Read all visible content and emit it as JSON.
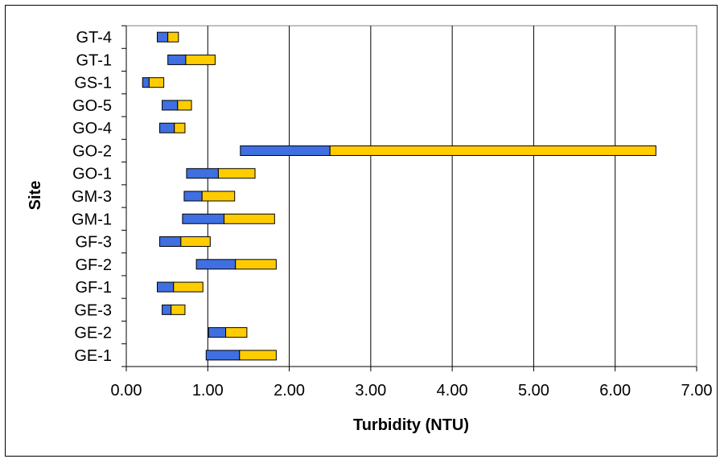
{
  "chart_data": {
    "type": "bar",
    "orientation": "horizontal",
    "stacked": "floating",
    "title": "",
    "xlabel": "Turbidity (NTU)",
    "ylabel": "Site",
    "xlim": [
      0,
      7
    ],
    "x_ticks": [
      "0.00",
      "1.00",
      "2.00",
      "3.00",
      "4.00",
      "5.00",
      "6.00",
      "7.00"
    ],
    "grid": "vertical",
    "legend": "none",
    "categories": [
      "GT-4",
      "GT-1",
      "GS-1",
      "GO-5",
      "GO-4",
      "GO-2",
      "GO-1",
      "GM-3",
      "GM-1",
      "GF-3",
      "GF-2",
      "GF-1",
      "GE-3",
      "GE-2",
      "GE-1"
    ],
    "series": [
      {
        "color": "#3f6fe0",
        "start": [
          0.38,
          0.51,
          0.2,
          0.44,
          0.41,
          1.4,
          0.74,
          0.71,
          0.69,
          0.41,
          0.86,
          0.38,
          0.44,
          1.01,
          0.98
        ],
        "end": [
          0.51,
          0.73,
          0.28,
          0.63,
          0.59,
          2.5,
          1.13,
          0.93,
          1.2,
          0.67,
          1.34,
          0.58,
          0.55,
          1.22,
          1.39
        ]
      },
      {
        "color": "#ffcc00",
        "start": [
          0.51,
          0.73,
          0.28,
          0.63,
          0.59,
          2.5,
          1.13,
          0.93,
          1.2,
          0.67,
          1.34,
          0.58,
          0.55,
          1.22,
          1.39
        ],
        "end": [
          0.64,
          1.09,
          0.46,
          0.8,
          0.72,
          6.5,
          1.58,
          1.33,
          1.82,
          1.03,
          1.84,
          0.94,
          0.72,
          1.48,
          1.84
        ]
      }
    ]
  }
}
